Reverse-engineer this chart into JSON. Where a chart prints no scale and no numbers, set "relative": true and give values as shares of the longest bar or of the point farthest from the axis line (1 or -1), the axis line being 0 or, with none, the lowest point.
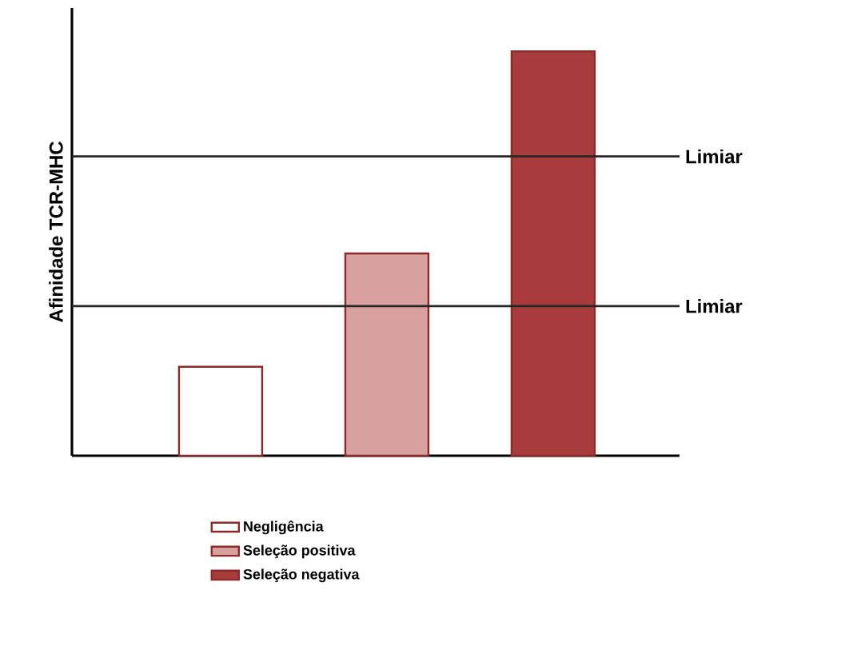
{
  "chart_data": {
    "type": "bar",
    "ylabel": "Afinidade TCR-MHC",
    "categories": [
      null,
      null,
      null
    ],
    "relative": true,
    "stacked": true,
    "series": [
      {
        "name": "Negligência",
        "color": "#ffffff",
        "values": [
          0.22,
          null,
          null
        ]
      },
      {
        "name": "Seleção positiva",
        "color": "#d9a0a0",
        "values": [
          null,
          0.5,
          null
        ]
      },
      {
        "name": "Seleção negativa",
        "color": "#a83c3c",
        "values": [
          null,
          null,
          1
        ]
      }
    ],
    "ref_lines": [
      {
        "axis": "y",
        "value": 0.37,
        "label": "Limiar"
      },
      {
        "axis": "y",
        "value": 0.74,
        "label": "Limiar"
      }
    ],
    "legend": "bottom"
  }
}
